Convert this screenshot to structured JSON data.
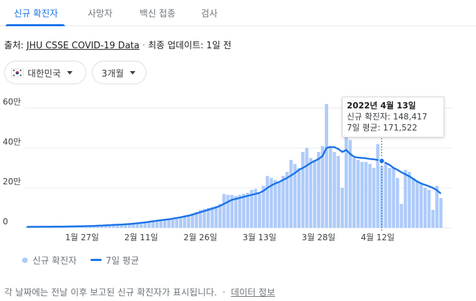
{
  "tabs": [
    {
      "label": "신규 확진자",
      "active": true
    },
    {
      "label": "사망자",
      "active": false
    },
    {
      "label": "백신 접종",
      "active": false
    },
    {
      "label": "검사",
      "active": false
    }
  ],
  "source": {
    "prefix": "출처: ",
    "link": "JHU CSSE COVID-19 Data",
    "separator": " · ",
    "updated": "최종 업데이트: 1일 전"
  },
  "filters": {
    "region": "대한민국",
    "period": "3개월"
  },
  "tooltip": {
    "date": "2022년 4월 13일",
    "cases_line": "신규 확진자: 148,417",
    "avg_line": "7일 평균: 171,522"
  },
  "legend": {
    "cases": "신규 확진자",
    "avg": "7일 평균"
  },
  "footer": {
    "note": "각 날짜에는 전날 이후 보고된 신규 확진자가 표시됩니다.",
    "separator": "·",
    "link": "데이터 정보"
  },
  "colors": {
    "bar": "#aecbfa",
    "line": "#1a73e8",
    "accent": "#1a73e8",
    "grid": "#e8eaed"
  },
  "chart_data": {
    "type": "bar",
    "title": "",
    "xlabel": "",
    "ylabel": "",
    "ylim": [
      0,
      650000
    ],
    "yticks": [
      {
        "value": 0,
        "label": "0"
      },
      {
        "value": 200000,
        "label": "20만"
      },
      {
        "value": 400000,
        "label": "40만"
      },
      {
        "value": 600000,
        "label": "60만"
      }
    ],
    "start_date": "2022-01-13",
    "xticks": [
      {
        "date": "2022-01-27",
        "label": "1월 27일"
      },
      {
        "date": "2022-02-11",
        "label": "2월 11일"
      },
      {
        "date": "2022-02-26",
        "label": "2월 26일"
      },
      {
        "date": "2022-03-13",
        "label": "3월 13일"
      },
      {
        "date": "2022-03-28",
        "label": "3월 28일"
      },
      {
        "date": "2022-04-12",
        "label": "4월 12일"
      }
    ],
    "grid": true,
    "legend_position": "bottom-left",
    "highlight_date": "2022-04-13",
    "series": [
      {
        "name": "신규 확진자",
        "type": "bar",
        "values": [
          4500,
          4200,
          4100,
          4400,
          5000,
          4800,
          5200,
          5500,
          6000,
          6200,
          6500,
          6800,
          7200,
          7500,
          8000,
          8500,
          9000,
          10000,
          11000,
          12000,
          13000,
          14000,
          15000,
          16000,
          17000,
          18000,
          20000,
          22000,
          25000,
          27000,
          30000,
          33000,
          35000,
          38000,
          40000,
          42000,
          45000,
          48000,
          52000,
          55000,
          60000,
          65000,
          72000,
          80000,
          90000,
          95000,
          100000,
          105000,
          110000,
          120000,
          170000,
          165000,
          165000,
          160000,
          165000,
          170000,
          175000,
          190000,
          195000,
          170000,
          210000,
          260000,
          250000,
          240000,
          230000,
          260000,
          280000,
          340000,
          320000,
          300000,
          380000,
          400000,
          350000,
          340000,
          380000,
          410000,
          620000,
          400000,
          380000,
          360000,
          200000,
          490000,
          440000,
          350000,
          340000,
          330000,
          330000,
          320000,
          300000,
          420000,
          310000,
          320000,
          300000,
          300000,
          250000,
          120000,
          290000,
          280000,
          250000,
          230000,
          220000,
          200000,
          190000,
          90000,
          210000,
          148417
        ],
        "values_unit_note": ""
      },
      {
        "name": "7일 평균",
        "type": "line",
        "values": [
          5000,
          5100,
          5200,
          5300,
          5400,
          5500,
          5600,
          5800,
          6000,
          6200,
          6500,
          6800,
          7200,
          7600,
          8000,
          8500,
          9000,
          9800,
          10600,
          11500,
          12400,
          13400,
          14400,
          15400,
          16400,
          17500,
          19000,
          20800,
          22800,
          25000,
          27400,
          30000,
          32800,
          35500,
          38000,
          40500,
          43000,
          46000,
          49500,
          53000,
          57000,
          61000,
          66000,
          72000,
          78000,
          84000,
          90000,
          96000,
          102000,
          110000,
          120000,
          130000,
          140000,
          145000,
          150000,
          155000,
          160000,
          165000,
          170000,
          175000,
          185000,
          200000,
          212000,
          222000,
          230000,
          240000,
          250000,
          262000,
          275000,
          290000,
          300000,
          312000,
          325000,
          335000,
          345000,
          360000,
          400000,
          405000,
          404000,
          395000,
          380000,
          390000,
          370000,
          355000,
          352000,
          350000,
          348000,
          345000,
          343000,
          340000,
          335000,
          325000,
          315000,
          300000,
          290000,
          278000,
          268000,
          258000,
          245000,
          232000,
          222000,
          215000,
          208000,
          200000,
          188000,
          171522
        ]
      }
    ]
  }
}
